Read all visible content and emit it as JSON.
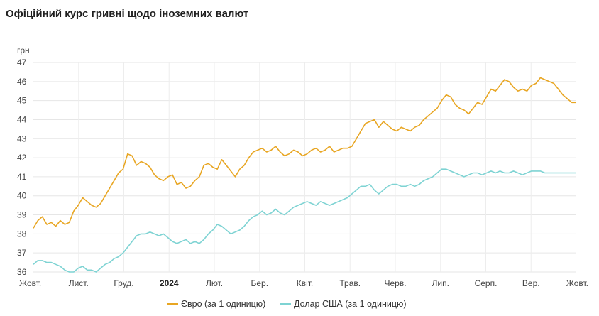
{
  "title": "Офіційний курс гривні щодо іноземних валют",
  "chart_data": {
    "type": "line",
    "y_unit": "грн",
    "ylim": [
      36,
      47
    ],
    "y_ticks": [
      "36",
      "37",
      "38",
      "39",
      "40",
      "41",
      "42",
      "43",
      "44",
      "45",
      "46",
      "47"
    ],
    "x_ticks": [
      "Жовт.",
      "Лист.",
      "Груд.",
      "2024",
      "Лют.",
      "Бер.",
      "Квіт.",
      "Трав.",
      "Черв.",
      "Лип.",
      "Серп.",
      "Вер.",
      "Жовт."
    ],
    "x_tick_bold": "2024",
    "grid": true,
    "legend_position": "bottom",
    "series": [
      {
        "name": "Євро (за 1 одиницю)",
        "color": "#e8a623",
        "values": [
          38.3,
          38.7,
          38.9,
          38.5,
          38.6,
          38.4,
          38.7,
          38.5,
          38.6,
          39.2,
          39.5,
          39.9,
          39.7,
          39.5,
          39.4,
          39.6,
          40.0,
          40.4,
          40.8,
          41.2,
          41.4,
          42.2,
          42.1,
          41.6,
          41.8,
          41.7,
          41.5,
          41.1,
          40.9,
          40.8,
          41.0,
          41.1,
          40.6,
          40.7,
          40.4,
          40.5,
          40.8,
          41.0,
          41.6,
          41.7,
          41.5,
          41.4,
          41.9,
          41.6,
          41.3,
          41.0,
          41.4,
          41.6,
          42.0,
          42.3,
          42.4,
          42.5,
          42.3,
          42.4,
          42.6,
          42.3,
          42.1,
          42.2,
          42.4,
          42.3,
          42.1,
          42.2,
          42.4,
          42.5,
          42.3,
          42.4,
          42.6,
          42.3,
          42.4,
          42.5,
          42.5,
          42.6,
          43.0,
          43.4,
          43.8,
          43.9,
          44.0,
          43.6,
          43.9,
          43.7,
          43.5,
          43.4,
          43.6,
          43.5,
          43.4,
          43.6,
          43.7,
          44.0,
          44.2,
          44.4,
          44.6,
          45.0,
          45.3,
          45.2,
          44.8,
          44.6,
          44.5,
          44.3,
          44.6,
          44.9,
          44.8,
          45.2,
          45.6,
          45.5,
          45.8,
          46.1,
          46.0,
          45.7,
          45.5,
          45.6,
          45.5,
          45.8,
          45.9,
          46.2,
          46.1,
          46.0,
          45.9,
          45.6,
          45.3,
          45.1,
          44.9,
          44.9
        ]
      },
      {
        "name": "Долар США (за 1 одиницю)",
        "color": "#7ed3d3",
        "values": [
          36.4,
          36.6,
          36.6,
          36.5,
          36.5,
          36.4,
          36.3,
          36.1,
          36.0,
          36.0,
          36.2,
          36.3,
          36.1,
          36.1,
          36.0,
          36.2,
          36.4,
          36.5,
          36.7,
          36.8,
          37.0,
          37.3,
          37.6,
          37.9,
          38.0,
          38.0,
          38.1,
          38.0,
          37.9,
          38.0,
          37.8,
          37.6,
          37.5,
          37.6,
          37.7,
          37.5,
          37.6,
          37.5,
          37.7,
          38.0,
          38.2,
          38.5,
          38.4,
          38.2,
          38.0,
          38.1,
          38.2,
          38.4,
          38.7,
          38.9,
          39.0,
          39.2,
          39.0,
          39.1,
          39.3,
          39.1,
          39.0,
          39.2,
          39.4,
          39.5,
          39.6,
          39.7,
          39.6,
          39.5,
          39.7,
          39.6,
          39.5,
          39.6,
          39.7,
          39.8,
          39.9,
          40.1,
          40.3,
          40.5,
          40.5,
          40.6,
          40.3,
          40.1,
          40.3,
          40.5,
          40.6,
          40.6,
          40.5,
          40.5,
          40.6,
          40.5,
          40.6,
          40.8,
          40.9,
          41.0,
          41.2,
          41.4,
          41.4,
          41.3,
          41.2,
          41.1,
          41.0,
          41.1,
          41.2,
          41.2,
          41.1,
          41.2,
          41.3,
          41.2,
          41.3,
          41.2,
          41.2,
          41.3,
          41.2,
          41.1,
          41.2,
          41.3,
          41.3,
          41.3,
          41.2,
          41.2,
          41.2,
          41.2,
          41.2,
          41.2,
          41.2,
          41.2
        ]
      }
    ]
  }
}
